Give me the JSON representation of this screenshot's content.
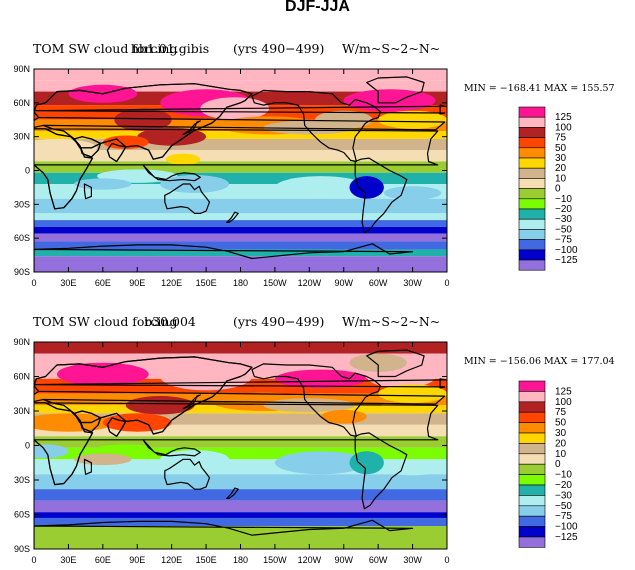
{
  "figure": {
    "title": "DJF-JJA"
  },
  "panels": [
    {
      "title_left": "TOM SW cloud forcing",
      "title_overlap": "b40.1850.track1.1deg.006 hb1.01.gibis (yrs 490-499)",
      "title_center": "hb1.01.gibis",
      "years": "(yrs 490−499)",
      "units": "W/m~S~2~N~",
      "min_max": "MIN = −168.41  MAX = 155.57",
      "lat_ticks": [
        "90N",
        "60N",
        "30N",
        "0",
        "30S",
        "60S",
        "90S"
      ],
      "lon_ticks": [
        "0",
        "30E",
        "60E",
        "90E",
        "120E",
        "150E",
        "180",
        "150W",
        "120W",
        "90W",
        "60W",
        "30W",
        "0"
      ]
    },
    {
      "title_left": "TOM SW cloud forcing",
      "title_center": "b30.004",
      "years": "(yrs 490−499)",
      "units": "W/m~S~2~N~",
      "min_max": "MIN = −156.06  MAX = 177.04",
      "lat_ticks": [
        "90N",
        "60N",
        "30N",
        "0",
        "30S",
        "60S",
        "90S"
      ],
      "lon_ticks": [
        "0",
        "30E",
        "60E",
        "90E",
        "120E",
        "150E",
        "180",
        "150W",
        "120W",
        "90W",
        "60W",
        "30W",
        "0"
      ]
    }
  ],
  "legend": {
    "levels": [
      {
        "label": "125",
        "color": "#ff1493"
      },
      {
        "label": "100",
        "color": "#ffb6c1"
      },
      {
        "label": "75",
        "color": "#b22222"
      },
      {
        "label": "50",
        "color": "#ff4500"
      },
      {
        "label": "30",
        "color": "#ff8c00"
      },
      {
        "label": "20",
        "color": "#ffd700"
      },
      {
        "label": "10",
        "color": "#d2b48c"
      },
      {
        "label": "0",
        "color": "#f5deb3"
      },
      {
        "label": "−10",
        "color": "#9acd32"
      },
      {
        "label": "−20",
        "color": "#7cfc00"
      },
      {
        "label": "−30",
        "color": "#20b2aa"
      },
      {
        "label": "−50",
        "color": "#afeeee"
      },
      {
        "label": "−75",
        "color": "#87ceeb"
      },
      {
        "label": "−100",
        "color": "#4169e1"
      },
      {
        "label": "−125",
        "color": "#0000cd"
      },
      {
        "label": "",
        "color": "#9370db"
      }
    ]
  },
  "colors": {
    "gt125": "#ff1493",
    "v100": "#ffb6c1",
    "v75": "#b22222",
    "v50": "#ff4500",
    "v30": "#ff8c00",
    "v20": "#ffd700",
    "v10": "#d2b48c",
    "v0": "#f5deb3",
    "m10": "#9acd32",
    "m20": "#7cfc00",
    "m30": "#20b2aa",
    "m50": "#afeeee",
    "m75": "#87ceeb",
    "m100": "#4169e1",
    "m125": "#0000cd",
    "lt125": "#9370db"
  }
}
